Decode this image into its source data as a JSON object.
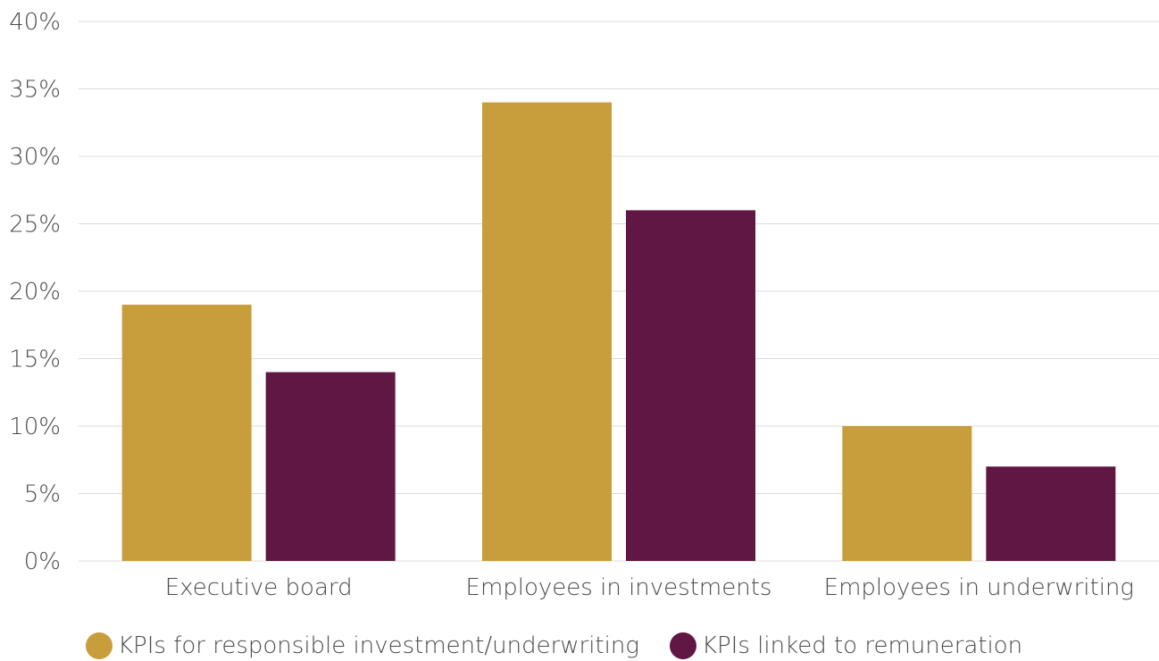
{
  "chart_data": {
    "type": "bar",
    "categories": [
      "Executive board",
      "Employees in investments",
      "Employees in underwriting"
    ],
    "series": [
      {
        "name": "KPIs for responsible investment/underwriting",
        "values": [
          19,
          34,
          10
        ],
        "color": "#c89d3c"
      },
      {
        "name": "KPIs linked to remuneration",
        "values": [
          14,
          26,
          7
        ],
        "color": "#611744"
      }
    ],
    "ylim": [
      0,
      40
    ],
    "yticks": [
      0,
      5,
      10,
      15,
      20,
      25,
      30,
      35,
      40
    ],
    "ytick_labels": [
      "0%",
      "5%",
      "10%",
      "15%",
      "20%",
      "25%",
      "30%",
      "35%",
      "40%"
    ],
    "grid": true,
    "legend_position": "bottom"
  }
}
